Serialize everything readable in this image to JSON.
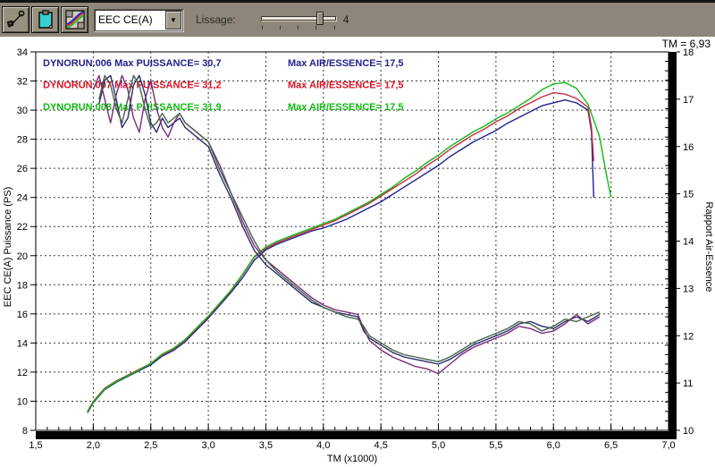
{
  "window": {
    "tm_readout": "TM = 6,93"
  },
  "toolbar": {
    "icons": [
      "graph-tool-icon",
      "clipboard-icon",
      "chart-display-icon"
    ],
    "channel_select_value": "EEC CE(A)",
    "lissage_label": "Lissage:",
    "lissage_value": "4"
  },
  "chart_data": {
    "type": "line",
    "title": "",
    "xlabel": "TM (x1000)",
    "ylabel_left": "EEC CE(A) Puissance (PS)",
    "ylabel_right": "Rapport Air-Essence",
    "xlim": [
      1.5,
      7.0
    ],
    "ylim_left": [
      8,
      34
    ],
    "ylim_right": [
      10,
      18
    ],
    "grid": "dashed",
    "x_ticks": {
      "values": [
        1.5,
        2.0,
        2.5,
        3.0,
        3.5,
        4.0,
        4.5,
        5.0,
        5.5,
        6.0,
        6.5,
        7.0
      ],
      "labels": [
        "1,5",
        "2,0",
        "2,5",
        "3,0",
        "3,5",
        "4,0",
        "4,5",
        "5,0",
        "5,5",
        "6,0",
        "6,5",
        "7,0"
      ],
      "minor_step": 0.1
    },
    "y_ticks_left": {
      "values": [
        34,
        32,
        30,
        28,
        26,
        24,
        22,
        20,
        18,
        16,
        14,
        12,
        10,
        8
      ],
      "labels": [
        "34",
        "32",
        "30",
        "28",
        "26",
        "24",
        "22",
        "20",
        "18",
        "16",
        "14",
        "12",
        "10",
        "8"
      ]
    },
    "y_ticks_right": {
      "values": [
        18,
        17,
        16,
        15,
        14,
        13,
        12,
        11,
        10
      ],
      "labels": [
        "18",
        "17",
        "16",
        "15",
        "14",
        "13",
        "12",
        "11",
        "10"
      ],
      "minor_step": 0.2
    },
    "legend": [
      {
        "color": "#22228e",
        "label": "DYNORUN.006 Max PUISSANCE= 30,7",
        "label2": "Max AIR/ESSENCE= 17,5"
      },
      {
        "color": "#dd1122",
        "label": "DYNORUN.007 Max PUISSANCE= 31,2",
        "label2": "Max AIR/ESSENCE= 17,5"
      },
      {
        "color": "#11bb11",
        "label": "DYNORUN.008 Max PUISSANCE= 31,9",
        "label2": "Max AIR/ESSENCE= 17,5"
      }
    ],
    "series": [
      {
        "name": "DYNORUN.006 Puissance",
        "axis": "left",
        "color": "#22228e",
        "x": [
          1.95,
          2.0,
          2.1,
          2.2,
          2.3,
          2.4,
          2.5,
          2.6,
          2.7,
          2.8,
          2.9,
          3.0,
          3.1,
          3.2,
          3.3,
          3.4,
          3.5,
          3.6,
          3.7,
          3.8,
          3.9,
          4.0,
          4.1,
          4.2,
          4.3,
          4.4,
          4.5,
          4.6,
          4.7,
          4.8,
          4.9,
          5.0,
          5.1,
          5.2,
          5.3,
          5.4,
          5.5,
          5.6,
          5.7,
          5.8,
          5.9,
          6.0,
          6.1,
          6.2,
          6.3,
          6.33,
          6.35
        ],
        "y": [
          9.2,
          9.9,
          10.8,
          11.3,
          11.7,
          12.1,
          12.5,
          13.1,
          13.5,
          14.1,
          14.9,
          15.7,
          16.6,
          17.5,
          18.5,
          19.7,
          20.4,
          20.8,
          21.1,
          21.4,
          21.7,
          21.9,
          22.2,
          22.5,
          22.9,
          23.3,
          23.7,
          24.2,
          24.7,
          25.2,
          25.7,
          26.2,
          26.8,
          27.3,
          27.8,
          28.2,
          28.6,
          29.1,
          29.5,
          29.9,
          30.3,
          30.5,
          30.7,
          30.5,
          30.0,
          28.5,
          24.0
        ]
      },
      {
        "name": "DYNORUN.007 Puissance",
        "axis": "left",
        "color": "#c52a44",
        "x": [
          1.95,
          2.0,
          2.1,
          2.2,
          2.3,
          2.4,
          2.5,
          2.6,
          2.7,
          2.8,
          2.9,
          3.0,
          3.1,
          3.2,
          3.3,
          3.4,
          3.5,
          3.6,
          3.7,
          3.8,
          3.9,
          4.0,
          4.1,
          4.2,
          4.3,
          4.4,
          4.5,
          4.6,
          4.7,
          4.8,
          4.9,
          5.0,
          5.1,
          5.2,
          5.3,
          5.4,
          5.5,
          5.6,
          5.7,
          5.8,
          5.9,
          6.0,
          6.1,
          6.2,
          6.3,
          6.33,
          6.35
        ],
        "y": [
          9.3,
          10.0,
          10.9,
          11.4,
          11.8,
          12.2,
          12.6,
          13.2,
          13.6,
          14.2,
          15.0,
          15.8,
          16.7,
          17.6,
          18.7,
          19.9,
          20.5,
          20.9,
          21.2,
          21.5,
          21.8,
          22.1,
          22.4,
          22.8,
          23.2,
          23.6,
          24.1,
          24.6,
          25.1,
          25.6,
          26.2,
          26.7,
          27.3,
          27.8,
          28.3,
          28.7,
          29.2,
          29.6,
          30.1,
          30.5,
          30.9,
          31.2,
          31.1,
          30.8,
          30.2,
          28.8,
          26.5
        ]
      },
      {
        "name": "DYNORUN.008 Puissance",
        "axis": "left",
        "color": "#11bb11",
        "x": [
          1.95,
          2.0,
          2.1,
          2.2,
          2.3,
          2.4,
          2.5,
          2.6,
          2.7,
          2.8,
          2.9,
          3.0,
          3.1,
          3.2,
          3.3,
          3.4,
          3.5,
          3.6,
          3.7,
          3.8,
          3.9,
          4.0,
          4.1,
          4.2,
          4.3,
          4.4,
          4.5,
          4.6,
          4.7,
          4.8,
          4.9,
          5.0,
          5.1,
          5.2,
          5.3,
          5.4,
          5.5,
          5.6,
          5.7,
          5.8,
          5.9,
          6.0,
          6.1,
          6.2,
          6.3,
          6.4,
          6.45,
          6.5
        ],
        "y": [
          9.25,
          9.95,
          10.85,
          11.35,
          11.75,
          12.15,
          12.6,
          13.25,
          13.65,
          14.25,
          15.05,
          15.85,
          16.75,
          17.65,
          18.75,
          19.95,
          20.6,
          21.0,
          21.3,
          21.6,
          21.9,
          22.2,
          22.5,
          22.9,
          23.3,
          23.7,
          24.2,
          24.7,
          25.3,
          25.8,
          26.4,
          26.9,
          27.5,
          28.0,
          28.5,
          28.9,
          29.4,
          29.8,
          30.3,
          30.8,
          31.4,
          31.8,
          31.9,
          31.5,
          30.4,
          28.2,
          26.0,
          24.0
        ]
      },
      {
        "name": "DYNORUN.006 Air-Essence",
        "axis": "right",
        "color": "#2b2b6e",
        "x": [
          2.05,
          2.1,
          2.15,
          2.2,
          2.25,
          2.3,
          2.35,
          2.4,
          2.45,
          2.5,
          2.55,
          2.6,
          2.65,
          2.7,
          2.75,
          2.8,
          2.85,
          2.9,
          3.0,
          3.1,
          3.2,
          3.3,
          3.4,
          3.5,
          3.6,
          3.7,
          3.8,
          3.9,
          4.0,
          4.1,
          4.2,
          4.3,
          4.35,
          4.4,
          4.5,
          4.6,
          4.7,
          4.8,
          4.9,
          5.0,
          5.1,
          5.2,
          5.3,
          5.4,
          5.5,
          5.6,
          5.7,
          5.8,
          5.9,
          6.0,
          6.1,
          6.2,
          6.3,
          6.4
        ],
        "y": [
          16.9,
          17.4,
          17.5,
          17.0,
          16.4,
          16.6,
          17.3,
          17.5,
          17.1,
          16.5,
          16.3,
          16.6,
          16.4,
          16.5,
          16.6,
          16.4,
          16.3,
          16.2,
          16.0,
          15.4,
          14.9,
          14.3,
          13.8,
          13.5,
          13.3,
          13.1,
          12.9,
          12.7,
          12.6,
          12.5,
          12.45,
          12.4,
          12.1,
          11.95,
          11.8,
          11.65,
          11.55,
          11.5,
          11.45,
          11.4,
          11.5,
          11.65,
          11.8,
          11.9,
          12.0,
          12.1,
          12.25,
          12.3,
          12.2,
          12.15,
          12.3,
          12.4,
          12.3,
          12.45
        ]
      },
      {
        "name": "DYNORUN.007 Air-Essence",
        "axis": "right",
        "color": "#7a2d7a",
        "x": [
          2.0,
          2.05,
          2.1,
          2.15,
          2.2,
          2.25,
          2.3,
          2.35,
          2.4,
          2.45,
          2.5,
          2.55,
          2.6,
          2.65,
          2.7,
          2.75,
          2.8,
          2.9,
          3.0,
          3.1,
          3.2,
          3.3,
          3.4,
          3.5,
          3.6,
          3.7,
          3.8,
          3.9,
          4.0,
          4.1,
          4.2,
          4.3,
          4.35,
          4.4,
          4.5,
          4.6,
          4.7,
          4.8,
          4.9,
          5.0,
          5.1,
          5.2,
          5.3,
          5.4,
          5.5,
          5.6,
          5.7,
          5.8,
          5.9,
          6.0,
          6.1,
          6.2,
          6.3,
          6.4
        ],
        "y": [
          17.2,
          17.5,
          17.0,
          16.5,
          17.1,
          17.5,
          17.2,
          16.6,
          16.3,
          17.0,
          17.4,
          16.8,
          16.4,
          16.2,
          16.5,
          16.7,
          16.5,
          16.3,
          16.1,
          15.6,
          15.0,
          14.4,
          13.9,
          13.6,
          13.4,
          13.2,
          13.0,
          12.8,
          12.65,
          12.55,
          12.5,
          12.45,
          12.15,
          11.9,
          11.7,
          11.55,
          11.45,
          11.35,
          11.3,
          11.2,
          11.4,
          11.6,
          11.75,
          11.85,
          11.95,
          12.05,
          12.2,
          12.15,
          12.05,
          12.1,
          12.25,
          12.45,
          12.25,
          12.4
        ]
      },
      {
        "name": "DYNORUN.008 Air-Essence",
        "axis": "right",
        "color": "#456545",
        "x": [
          2.05,
          2.1,
          2.15,
          2.2,
          2.25,
          2.3,
          2.35,
          2.4,
          2.45,
          2.5,
          2.55,
          2.6,
          2.65,
          2.7,
          2.75,
          2.8,
          2.85,
          2.9,
          3.0,
          3.1,
          3.2,
          3.3,
          3.4,
          3.5,
          3.6,
          3.7,
          3.8,
          3.9,
          4.0,
          4.1,
          4.2,
          4.3,
          4.35,
          4.4,
          4.5,
          4.6,
          4.7,
          4.8,
          4.9,
          5.0,
          5.1,
          5.2,
          5.3,
          5.4,
          5.5,
          5.6,
          5.7,
          5.8,
          5.9,
          6.0,
          6.1,
          6.2,
          6.3,
          6.4
        ],
        "y": [
          17.0,
          17.5,
          17.3,
          16.8,
          16.5,
          17.0,
          17.5,
          17.3,
          16.8,
          16.4,
          16.5,
          16.7,
          16.5,
          16.6,
          16.7,
          16.5,
          16.4,
          16.3,
          16.1,
          15.5,
          15.0,
          14.5,
          14.0,
          13.6,
          13.35,
          13.15,
          12.95,
          12.75,
          12.6,
          12.5,
          12.4,
          12.35,
          12.2,
          12.0,
          11.85,
          11.7,
          11.6,
          11.55,
          11.5,
          11.45,
          11.55,
          11.7,
          11.85,
          11.95,
          12.05,
          12.15,
          12.3,
          12.25,
          12.1,
          12.2,
          12.35,
          12.3,
          12.4,
          12.5
        ]
      }
    ]
  }
}
